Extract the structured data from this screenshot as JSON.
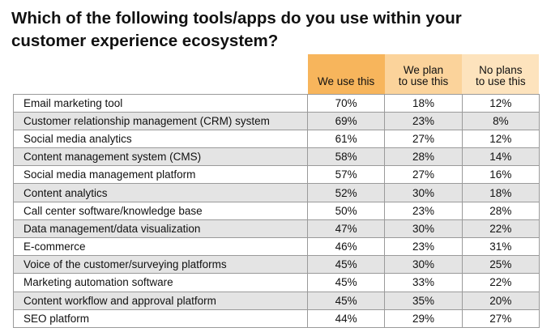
{
  "title": "Which of the following tools/apps do you use within your customer experience ecosystem?",
  "colors": {
    "col1": "#f7b55c",
    "col2": "#fbd39b",
    "col3": "#fde3bd",
    "stripe": "#e4e4e4"
  },
  "chart_data": {
    "type": "table",
    "title": "Which of the following tools/apps do you use within your customer experience ecosystem?",
    "columns": [
      "We use this",
      "We plan to use this",
      "No plans to use this"
    ],
    "column_lines": [
      [
        "We use this"
      ],
      [
        "We plan",
        "to use this"
      ],
      [
        "No plans",
        "to use this"
      ]
    ],
    "rows": [
      {
        "label": "Email marketing tool",
        "values": [
          "70%",
          "18%",
          "12%"
        ]
      },
      {
        "label": "Customer relationship management (CRM) system",
        "values": [
          "69%",
          "23%",
          "8%"
        ]
      },
      {
        "label": "Social media analytics",
        "values": [
          "61%",
          "27%",
          "12%"
        ]
      },
      {
        "label": "Content management system (CMS)",
        "values": [
          "58%",
          "28%",
          "14%"
        ]
      },
      {
        "label": "Social media management platform",
        "values": [
          "57%",
          "27%",
          "16%"
        ]
      },
      {
        "label": "Content analytics",
        "values": [
          "52%",
          "30%",
          "18%"
        ]
      },
      {
        "label": "Call center software/knowledge base",
        "values": [
          "50%",
          "23%",
          "28%"
        ]
      },
      {
        "label": "Data management/data visualization",
        "values": [
          "47%",
          "30%",
          "22%"
        ]
      },
      {
        "label": "E-commerce",
        "values": [
          "46%",
          "23%",
          "31%"
        ]
      },
      {
        "label": "Voice of the customer/surveying platforms",
        "values": [
          "45%",
          "30%",
          "25%"
        ]
      },
      {
        "label": "Marketing automation software",
        "values": [
          "45%",
          "33%",
          "22%"
        ]
      },
      {
        "label": "Content workflow and approval platform",
        "values": [
          "45%",
          "35%",
          "20%"
        ]
      },
      {
        "label": "SEO platform",
        "values": [
          "44%",
          "29%",
          "27%"
        ]
      }
    ]
  }
}
